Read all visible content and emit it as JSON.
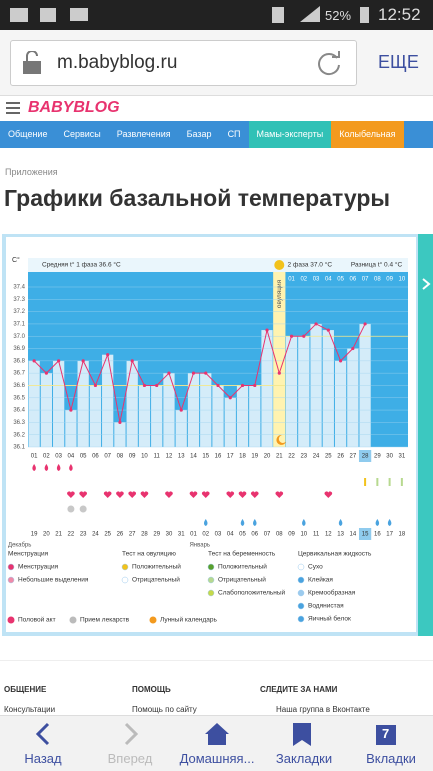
{
  "status_bar": {
    "battery": "52%",
    "time": "12:52"
  },
  "browser": {
    "url": "m.babyblog.ru",
    "menu": "ЕЩЕ"
  },
  "site": {
    "logo": "BABYBLOG",
    "nav": [
      "Общение",
      "Сервисы",
      "Развлечения",
      "Базар",
      "СП",
      "Мамы-эксперты",
      "Колыбельная"
    ]
  },
  "breadcrumb": "Приложения",
  "title": "Графики базальной температуры",
  "chart_data": {
    "type": "line",
    "y_label": "C°",
    "phase1_average": "Средняя t° 1 фаза 36.6 °C",
    "phase2_average": "2 фаза 37.0 °C",
    "difference": "Разница t° 0.4 °C",
    "phase_averages": [
      36.6,
      37.0
    ],
    "ovulation_label": "овуляция",
    "ovulation_day": 21,
    "current_day": 28,
    "categories": [
      "01",
      "02",
      "03",
      "04",
      "05",
      "06",
      "07",
      "08",
      "09",
      "10",
      "11",
      "12",
      "13",
      "14",
      "15",
      "16",
      "17",
      "18",
      "19",
      "20",
      "21",
      "22",
      "23",
      "24",
      "25",
      "26",
      "27",
      "28",
      "29",
      "30",
      "31"
    ],
    "values": [
      36.8,
      36.7,
      36.8,
      36.4,
      36.8,
      36.6,
      36.85,
      36.3,
      36.8,
      36.6,
      36.6,
      36.7,
      36.4,
      36.7,
      36.7,
      36.6,
      36.5,
      36.6,
      36.6,
      37.05,
      36.7,
      37.0,
      37.0,
      37.1,
      37.05,
      36.8,
      36.9,
      37.1,
      null,
      null,
      null
    ],
    "color": "#e8336f",
    "next_cycle_days": [
      "01",
      "02",
      "03",
      "04",
      "05",
      "06",
      "07",
      "08",
      "09",
      "10"
    ],
    "dates": [
      "19",
      "20",
      "21",
      "22",
      "23",
      "24",
      "25",
      "26",
      "27",
      "28",
      "29",
      "30",
      "31",
      "01",
      "02",
      "03",
      "04",
      "05",
      "06",
      "07",
      "08",
      "09",
      "10",
      "11",
      "12",
      "13",
      "14",
      "15",
      "16",
      "17",
      "18"
    ],
    "months": [
      "Декабрь",
      "Январь"
    ],
    "ylim": [
      36.1,
      37.4
    ],
    "yticks": [
      36.1,
      36.2,
      36.3,
      36.4,
      36.5,
      36.6,
      36.7,
      36.8,
      36.9,
      {
        "value": 37,
        "label": "37.0"
      },
      37.1,
      37.2,
      37.3,
      37.4
    ],
    "menstruation_days": [
      1,
      2,
      3,
      4
    ],
    "intercourse_days": [
      4,
      5,
      7,
      8,
      9,
      10,
      12,
      14,
      15,
      17,
      18,
      19,
      21,
      25
    ],
    "medication_days": [
      4,
      5
    ],
    "test_days": [
      28,
      29,
      30,
      31
    ],
    "cervical_days": [
      15,
      18,
      19,
      23,
      26,
      29,
      30
    ],
    "legend": [
      {
        "title": "Менструация",
        "items": [
          {
            "label": "Менструация",
            "color": "#e8336f"
          },
          {
            "label": "Небольшие выделения",
            "color": "#f08aa8"
          }
        ]
      },
      {
        "title": "Тест на овуляцию",
        "items": [
          {
            "label": "Положительный",
            "color": "#f2c21b"
          },
          {
            "label": "Отрицательный",
            "color": "#ffffff"
          }
        ]
      },
      {
        "title": "Тест на беременность",
        "items": [
          {
            "label": "Положительный",
            "color": "#5aa02c"
          },
          {
            "label": "Отрицательный",
            "color": "#b7d98f"
          },
          {
            "label": "Слабоположительный",
            "color": "#c6d94a"
          }
        ]
      },
      {
        "title": "Цервикальная жидкость",
        "items": [
          {
            "label": "Сухо",
            "color": "#ffffff"
          },
          {
            "label": "Клейкая",
            "color": "#4aa3df"
          },
          {
            "label": "Кремообразная",
            "color": "#9ccbee"
          },
          {
            "label": "Водянистая",
            "color": "#4aa3df"
          },
          {
            "label": "Яичный белок",
            "color": "#4aa3df"
          }
        ]
      }
    ],
    "legend_bottom": [
      {
        "label": "Половой акт",
        "color": "#e8336f"
      },
      {
        "label": "Прием лекарств",
        "color": "#bbbbbb"
      },
      {
        "label": "Лунный календарь",
        "color": "#f39a1e"
      }
    ]
  },
  "footer": {
    "columns": [
      {
        "title": "ОБЩЕНИЕ",
        "link": "Консультации"
      },
      {
        "title": "ПОМОЩЬ",
        "link": "Помощь по сайту"
      },
      {
        "title": "СЛЕДИТЕ ЗА НАМИ",
        "link": "Наша группа в Вконтакте"
      }
    ]
  },
  "bottom_nav": {
    "items": [
      "Назад",
      "Вперед",
      "Домашняя...",
      "Закладки",
      "Вкладки"
    ],
    "tabs_count": "7"
  }
}
